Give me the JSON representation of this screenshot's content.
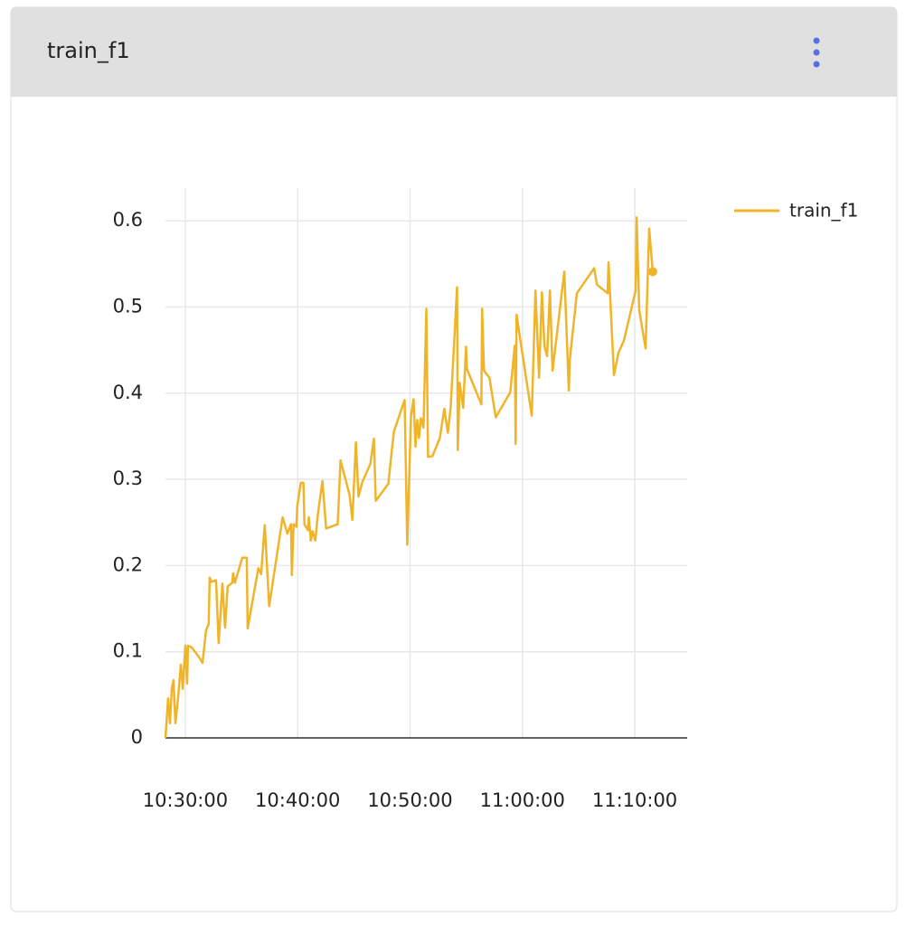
{
  "chart_data": {
    "type": "line",
    "title": "train_f1",
    "x": [
      "10:28:14",
      "10:28:28",
      "10:28:38",
      "10:28:48",
      "10:28:57",
      "10:29:07",
      "10:29:21",
      "10:29:36",
      "10:29:46",
      "10:30:00",
      "10:30:10",
      "10:30:14",
      "10:30:34",
      "10:31:12",
      "10:31:32",
      "10:31:51",
      "10:32:05",
      "10:32:10",
      "10:32:20",
      "10:32:44",
      "10:32:58",
      "10:33:18",
      "10:33:32",
      "10:33:46",
      "10:34:11",
      "10:34:15",
      "10:34:25",
      "10:35:04",
      "10:35:28",
      "10:35:33",
      "10:36:30",
      "10:36:45",
      "10:37:04",
      "10:37:28",
      "10:38:40",
      "10:39:05",
      "10:39:24",
      "10:39:29",
      "10:39:38",
      "10:39:53",
      "10:39:58",
      "10:40:17",
      "10:40:31",
      "10:40:36",
      "10:40:55",
      "10:41:00",
      "10:41:10",
      "10:41:19",
      "10:41:34",
      "10:41:48",
      "10:42:12",
      "10:42:32",
      "10:43:34",
      "10:43:49",
      "10:44:37",
      "10:44:52",
      "10:45:11",
      "10:45:25",
      "10:45:45",
      "10:46:28",
      "10:46:47",
      "10:46:57",
      "10:48:04",
      "10:48:33",
      "10:49:31",
      "10:49:45",
      "10:50:05",
      "10:50:19",
      "10:50:29",
      "10:50:38",
      "10:50:48",
      "10:50:58",
      "10:51:12",
      "10:51:27",
      "10:51:36",
      "10:52:00",
      "10:52:39",
      "10:53:03",
      "10:53:22",
      "10:53:37",
      "10:54:11",
      "10:54:15",
      "10:54:25",
      "10:54:35",
      "10:54:44",
      "10:54:59",
      "10:55:04",
      "10:56:21",
      "10:56:25",
      "10:56:35",
      "10:57:04",
      "10:57:38",
      "10:58:55",
      "10:59:19",
      "10:59:24",
      "10:59:29",
      "11:00:50",
      "11:01:10",
      "11:01:29",
      "11:01:44",
      "11:01:58",
      "11:02:12",
      "11:02:27",
      "11:02:41",
      "11:03:44",
      "11:04:08",
      "11:04:13",
      "11:04:51",
      "11:06:23",
      "11:06:38",
      "11:07:35",
      "11:07:40",
      "11:08:09",
      "11:08:33",
      "11:09:02",
      "11:10:05",
      "11:10:10",
      "11:10:24",
      "11:10:58",
      "11:11:17",
      "11:11:36"
    ],
    "series": [
      {
        "name": "train_f1",
        "color": "#f0b429",
        "values": [
          0,
          0.046,
          0.017,
          0.057,
          0.067,
          0.017,
          0.046,
          0.085,
          0.057,
          0.107,
          0.063,
          0.107,
          0.105,
          0.094,
          0.087,
          0.125,
          0.132,
          0.186,
          0.181,
          0.183,
          0.11,
          0.179,
          0.128,
          0.176,
          0.18,
          0.191,
          0.18,
          0.209,
          0.209,
          0.127,
          0.197,
          0.19,
          0.247,
          0.153,
          0.256,
          0.237,
          0.248,
          0.189,
          0.248,
          0.245,
          0.269,
          0.296,
          0.296,
          0.248,
          0.241,
          0.256,
          0.229,
          0.24,
          0.229,
          0.26,
          0.298,
          0.243,
          0.248,
          0.322,
          0.282,
          0.253,
          0.343,
          0.28,
          0.297,
          0.318,
          0.347,
          0.275,
          0.295,
          0.355,
          0.392,
          0.224,
          0.373,
          0.393,
          0.338,
          0.369,
          0.348,
          0.371,
          0.36,
          0.498,
          0.326,
          0.327,
          0.348,
          0.382,
          0.354,
          0.383,
          0.523,
          0.334,
          0.412,
          0.397,
          0.383,
          0.454,
          0.428,
          0.387,
          0.498,
          0.426,
          0.418,
          0.372,
          0.401,
          0.455,
          0.341,
          0.491,
          0.374,
          0.519,
          0.418,
          0.517,
          0.454,
          0.443,
          0.519,
          0.426,
          0.541,
          0.403,
          0.438,
          0.516,
          0.545,
          0.526,
          0.516,
          0.552,
          0.421,
          0.447,
          0.461,
          0.519,
          0.604,
          0.496,
          0.452,
          0.591,
          0.541
        ]
      }
    ],
    "xlim": [
      "10:28:14",
      "11:14:40"
    ],
    "xticks": [
      "10:30:00",
      "10:40:00",
      "10:50:00",
      "11:00:00",
      "11:10:00"
    ],
    "ylim": [
      0,
      0.638
    ],
    "yticks": [
      0,
      0.1,
      0.2,
      0.3,
      0.4,
      0.5,
      0.6
    ],
    "grid": true
  }
}
